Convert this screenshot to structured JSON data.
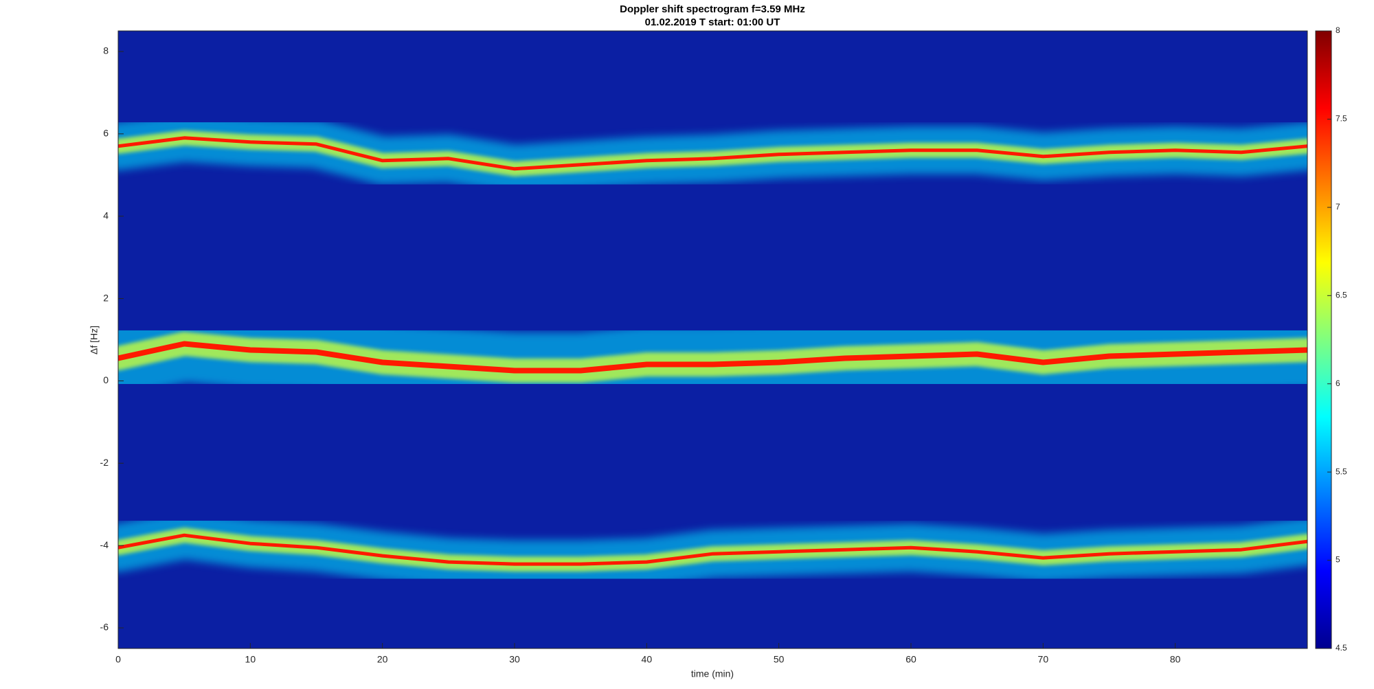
{
  "chart_data": {
    "type": "spectrogram",
    "title": "Doppler shift spectrogram f=3.59 MHz",
    "subtitle": "01.02.2019   T start: 01:00 UT",
    "x_label": "time (min)",
    "y_label": "Δf [Hz]",
    "x": [
      0,
      5,
      10,
      15,
      20,
      25,
      30,
      35,
      40,
      45,
      50,
      55,
      60,
      65,
      70,
      75,
      80,
      85,
      90
    ],
    "series": [
      {
        "color": "#ff1a00",
        "values": [
          5.7,
          5.9,
          5.8,
          5.75,
          5.35,
          5.4,
          5.15,
          5.25,
          5.35,
          5.4,
          5.5,
          5.55,
          5.6,
          5.6,
          5.45,
          5.55,
          5.6,
          5.55,
          5.7
        ]
      },
      {
        "color": "#ff1a00",
        "values": [
          0.55,
          0.9,
          0.75,
          0.7,
          0.45,
          0.35,
          0.25,
          0.25,
          0.4,
          0.4,
          0.45,
          0.55,
          0.6,
          0.65,
          0.45,
          0.6,
          0.65,
          0.7,
          0.75
        ]
      },
      {
        "color": "#ff1a00",
        "values": [
          -4.05,
          -3.75,
          -3.95,
          -4.05,
          -4.25,
          -4.4,
          -4.45,
          -4.45,
          -4.4,
          -4.2,
          -4.15,
          -4.1,
          -4.05,
          -4.15,
          -4.3,
          -4.2,
          -4.15,
          -4.1,
          -3.9
        ]
      }
    ],
    "xlim": [
      0,
      90
    ],
    "xticks": [
      0,
      10,
      20,
      30,
      40,
      50,
      60,
      70,
      80
    ],
    "ylim": [
      -6.5,
      8.5
    ],
    "yticks": [
      -6,
      -4,
      -2,
      0,
      2,
      4,
      6,
      8
    ],
    "background_color": "#0b1fa3",
    "colormap": "jet",
    "clim": [
      4.5,
      8
    ],
    "cticks": [
      4.5,
      5,
      5.5,
      6,
      6.5,
      7,
      7.5,
      8
    ]
  }
}
